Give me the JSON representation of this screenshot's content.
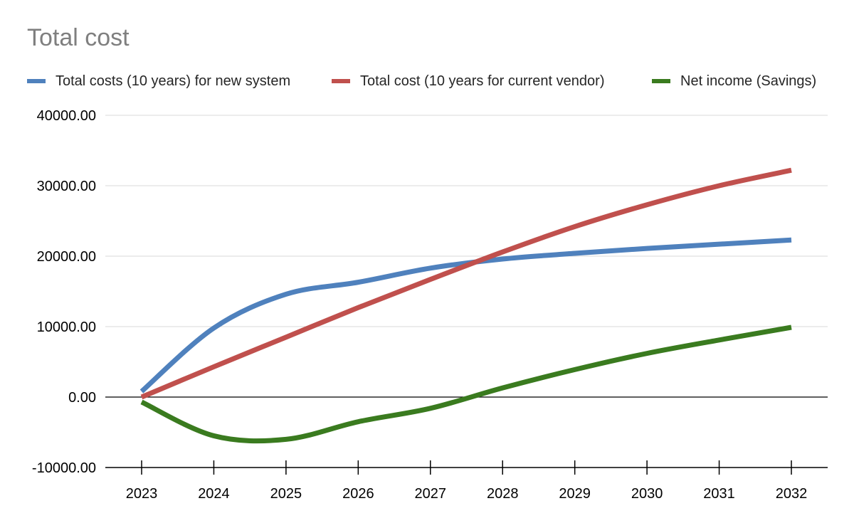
{
  "chart_data": {
    "type": "line",
    "title": "Total cost",
    "xlabel": "",
    "ylabel": "",
    "x": [
      "2023",
      "2024",
      "2025",
      "2026",
      "2027",
      "2028",
      "2029",
      "2030",
      "2031",
      "2032"
    ],
    "ylim": [
      -10000,
      40000
    ],
    "yticks": [
      "-10000.00",
      "0.00",
      "10000.00",
      "20000.00",
      "30000.00",
      "40000.00"
    ],
    "grid": true,
    "legend_position": "top",
    "series": [
      {
        "name": "Total costs (10 years) for new system",
        "color": "#4f81bd",
        "values": [
          800,
          9800,
          14600,
          16300,
          18300,
          19600,
          20400,
          21100,
          21700,
          22300
        ]
      },
      {
        "name": "Total cost (10 years for current vendor)",
        "color": "#c0504d",
        "values": [
          0,
          4300,
          8500,
          12700,
          16700,
          20600,
          24200,
          27300,
          30000,
          32200
        ]
      },
      {
        "name": "Net income (Savings)",
        "color": "#3a7b1f",
        "values": [
          -700,
          -5500,
          -6000,
          -3500,
          -1600,
          1300,
          3900,
          6200,
          8100,
          9900
        ]
      }
    ]
  }
}
